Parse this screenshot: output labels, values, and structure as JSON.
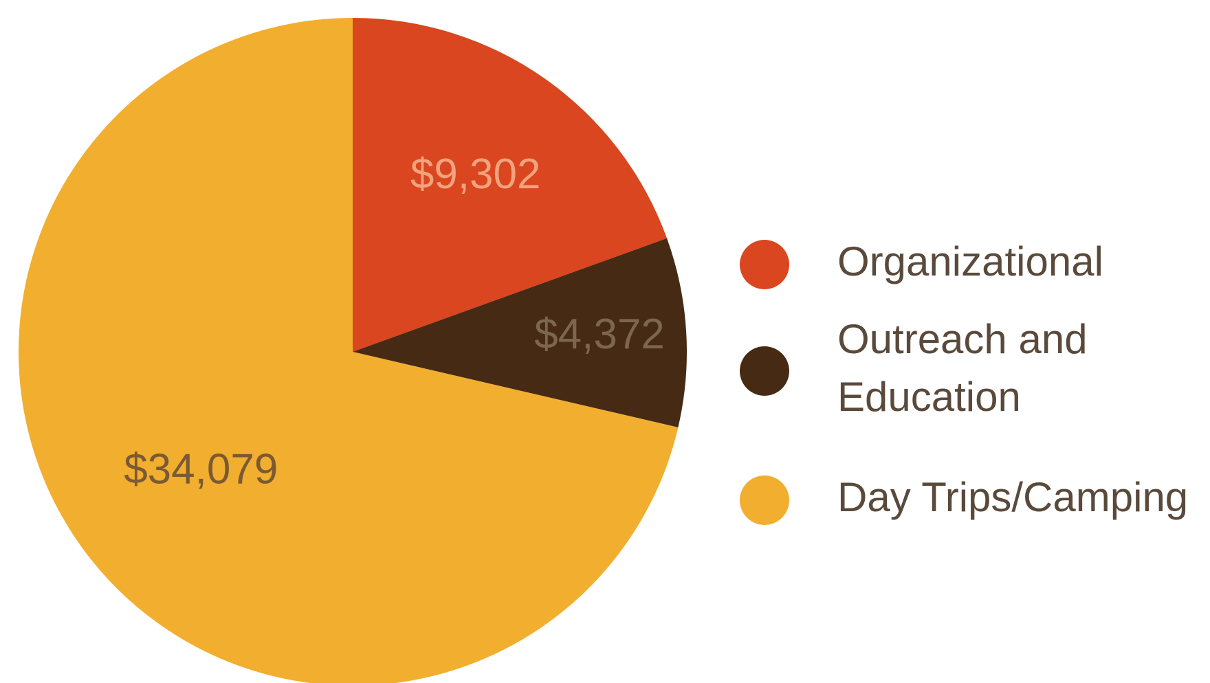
{
  "chart_data": {
    "type": "pie",
    "slices": [
      {
        "label": "Organizational",
        "value": 9302,
        "display": "$9,302",
        "color": "#d9461f",
        "label_color": "#f2a37e"
      },
      {
        "label": "Outreach and Education",
        "value": 4372,
        "display": "$4,372",
        "color": "#472a14",
        "label_color": "#7d6650"
      },
      {
        "label": "Day Trips/Camping",
        "value": 34079,
        "display": "$34,079",
        "color": "#f2ae2e",
        "label_color": "#7a5a34"
      }
    ],
    "start_angle_deg": 0,
    "direction": "clockwise",
    "legend": {
      "position": "right",
      "items": [
        {
          "lines": [
            "Organizational"
          ],
          "color": "#d9461f"
        },
        {
          "lines": [
            "Outreach and",
            "Education"
          ],
          "color": "#472a14"
        },
        {
          "lines": [
            "Day Trips/Camping"
          ],
          "color": "#f2ae2e"
        }
      ]
    }
  }
}
